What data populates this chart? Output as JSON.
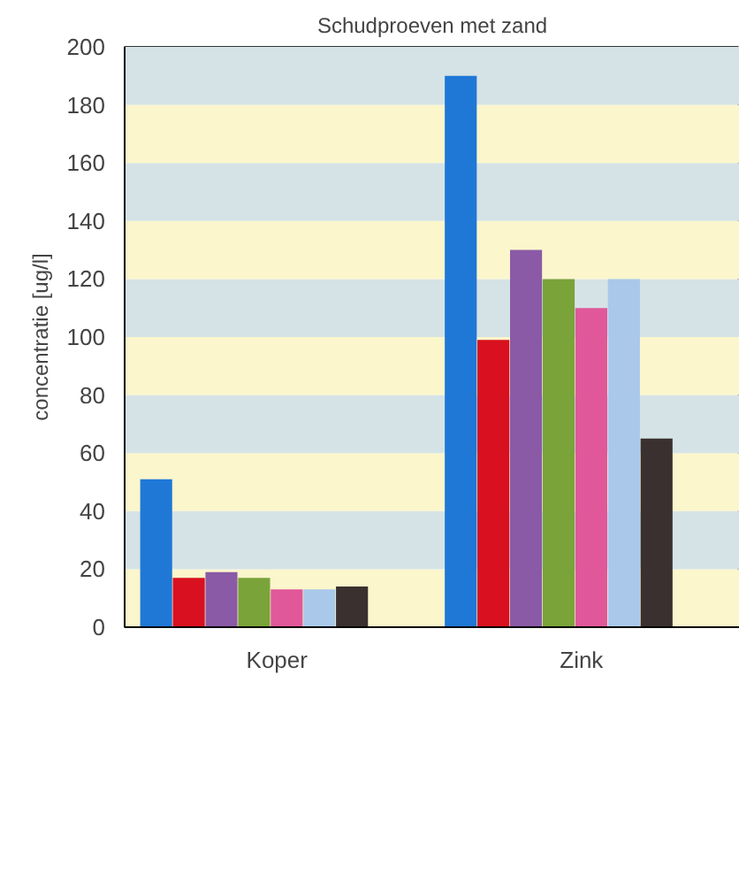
{
  "chart_data": {
    "type": "bar",
    "title": "Schudproeven met zand",
    "ylabel": "concentratie [ug/l]",
    "categories": [
      "Koper",
      "Zink"
    ],
    "series": [
      {
        "color": "#1f78d6",
        "values": [
          51,
          190
        ]
      },
      {
        "color": "#d9101f",
        "values": [
          17,
          99
        ]
      },
      {
        "color": "#8a5aa6",
        "values": [
          19,
          130
        ]
      },
      {
        "color": "#7aa33a",
        "values": [
          17,
          120
        ]
      },
      {
        "color": "#e0589a",
        "values": [
          13,
          110
        ]
      },
      {
        "color": "#a9c8ea",
        "values": [
          13,
          120
        ]
      },
      {
        "color": "#3a3030",
        "values": [
          14,
          65
        ]
      }
    ],
    "ylim": [
      0,
      200
    ],
    "yticks": [
      0,
      20,
      40,
      60,
      80,
      100,
      120,
      140,
      160,
      180,
      200
    ],
    "bands": [
      {
        "axis": "y",
        "from": 0,
        "to": 20,
        "color": "#fbf6cc"
      },
      {
        "axis": "y",
        "from": 20,
        "to": 40,
        "color": "#d5e3e6"
      },
      {
        "axis": "y",
        "from": 40,
        "to": 60,
        "color": "#fbf6cc"
      },
      {
        "axis": "y",
        "from": 60,
        "to": 80,
        "color": "#d5e3e6"
      },
      {
        "axis": "y",
        "from": 80,
        "to": 100,
        "color": "#fbf6cc"
      },
      {
        "axis": "y",
        "from": 100,
        "to": 120,
        "color": "#d5e3e6"
      },
      {
        "axis": "y",
        "from": 120,
        "to": 140,
        "color": "#fbf6cc"
      },
      {
        "axis": "y",
        "from": 140,
        "to": 160,
        "color": "#d5e3e6"
      },
      {
        "axis": "y",
        "from": 160,
        "to": 180,
        "color": "#fbf6cc"
      },
      {
        "axis": "y",
        "from": 180,
        "to": 200,
        "color": "#d5e3e6"
      }
    ],
    "grid": false
  }
}
